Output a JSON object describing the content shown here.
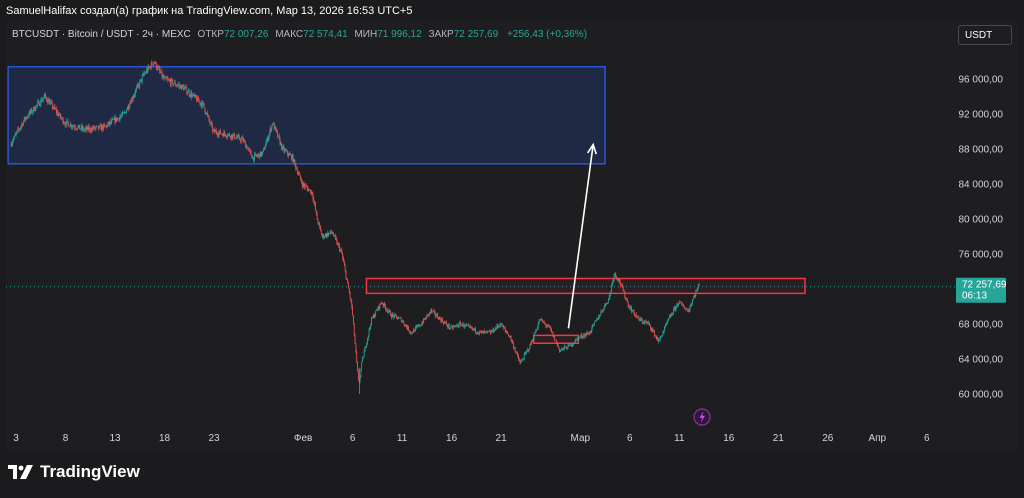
{
  "header": {
    "caption": "SamuelHalifax создал(а) график на TradingView.com, Мар 13, 2026 16:53 UTC+5"
  },
  "legend": {
    "symbol": "BTCUSDT · Bitcoin / USDT · 2ч · MEXC",
    "open_label": "ОТКР",
    "open_value": "72 007,26",
    "high_label": "МАКС",
    "high_value": "72 574,41",
    "low_label": "МИН",
    "low_value": "71 996,12",
    "close_label": "ЗАКР",
    "close_value": "72 257,69",
    "change": "+256,43 (+0,36%)"
  },
  "currency_button": "USDT",
  "price_badge": {
    "price": "72 257,69",
    "countdown": "06:13"
  },
  "footer": {
    "logo_text": "TradingView"
  },
  "colors": {
    "up": "#26a69a",
    "down": "#ef5350",
    "zone_blue_border": "#2962ff",
    "zone_red_border": "#f23645",
    "background": "#1e1e20",
    "axis_text": "#d1d4dc"
  },
  "chart_data": {
    "type": "candlestick",
    "title": "BTCUSDT · Bitcoin / USDT · 2ч · MEXC",
    "ylim": [
      58000,
      100000
    ],
    "y_ticks": [
      "60 000,00",
      "64 000,00",
      "68 000,00",
      "72 000,00",
      "76 000,00",
      "80 000,00",
      "84 000,00",
      "88 000,00",
      "92 000,00",
      "96 000,00"
    ],
    "y_tick_values": [
      60000,
      64000,
      68000,
      72000,
      76000,
      80000,
      84000,
      88000,
      92000,
      96000
    ],
    "x_ticks": [
      "3",
      "8",
      "13",
      "18",
      "23",
      "Фев",
      "6",
      "11",
      "16",
      "21",
      "Мар",
      "6",
      "11",
      "16",
      "21",
      "26",
      "Апр",
      "6"
    ],
    "x_tick_days": [
      0,
      5,
      10,
      15,
      20,
      29,
      34,
      39,
      44,
      49,
      57,
      62,
      67,
      72,
      77,
      82,
      87,
      92
    ],
    "price_path": [
      [
        -0.5,
        88500
      ],
      [
        1,
        91500
      ],
      [
        3,
        94000
      ],
      [
        5,
        91000
      ],
      [
        7,
        90200
      ],
      [
        9,
        90500
      ],
      [
        11,
        92000
      ],
      [
        13,
        96500
      ],
      [
        14,
        98000
      ],
      [
        15,
        96000
      ],
      [
        17,
        95000
      ],
      [
        19,
        93000
      ],
      [
        20,
        90000
      ],
      [
        22,
        89500
      ],
      [
        23,
        89000
      ],
      [
        24,
        87000
      ],
      [
        25,
        87500
      ],
      [
        26,
        91000
      ],
      [
        27,
        88000
      ],
      [
        28,
        87000
      ],
      [
        29,
        84000
      ],
      [
        30,
        83000
      ],
      [
        30.5,
        80000
      ],
      [
        31,
        78000
      ],
      [
        32,
        78500
      ],
      [
        33,
        76000
      ],
      [
        33.5,
        73000
      ],
      [
        34,
        70000
      ],
      [
        34.7,
        61000
      ],
      [
        35,
        63500
      ],
      [
        36,
        68500
      ],
      [
        37,
        70500
      ],
      [
        38,
        69000
      ],
      [
        39,
        68500
      ],
      [
        40,
        67000
      ],
      [
        41,
        68000
      ],
      [
        42,
        69500
      ],
      [
        43,
        68500
      ],
      [
        44,
        67500
      ],
      [
        45,
        68000
      ],
      [
        46,
        67500
      ],
      [
        47,
        67000
      ],
      [
        48,
        67000
      ],
      [
        49,
        68000
      ],
      [
        50,
        66500
      ],
      [
        51,
        63500
      ],
      [
        52,
        65500
      ],
      [
        53,
        68500
      ],
      [
        54,
        67500
      ],
      [
        55,
        65000
      ],
      [
        56,
        65500
      ],
      [
        57,
        66500
      ],
      [
        58,
        67000
      ],
      [
        59,
        69000
      ],
      [
        60,
        71000
      ],
      [
        60.5,
        73800
      ],
      [
        61,
        73000
      ],
      [
        62,
        70000
      ],
      [
        63,
        68500
      ],
      [
        64,
        68000
      ],
      [
        65,
        66000
      ],
      [
        66,
        68500
      ],
      [
        67,
        70500
      ],
      [
        68,
        69500
      ],
      [
        68.5,
        71000
      ],
      [
        69,
        72300
      ]
    ],
    "zones": [
      {
        "name": "upper-resistance-zone",
        "day_start": -0.8,
        "day_end": 59.5,
        "price_low": 86300,
        "price_high": 97400,
        "color": "#2962ff"
      },
      {
        "name": "middle-supply-zone",
        "day_start": 35.4,
        "day_end": 79.7,
        "price_low": 71500,
        "price_high": 73200,
        "color": "#f23645"
      },
      {
        "name": "lower-demand-zone",
        "day_start": 52.3,
        "day_end": 56.8,
        "price_low": 65800,
        "price_high": 66700,
        "color": "#f23645"
      }
    ],
    "arrow": {
      "day_start": 55.8,
      "price_start": 67500,
      "day_end": 58.3,
      "price_end": 88500
    },
    "last_price": 72257.69
  }
}
